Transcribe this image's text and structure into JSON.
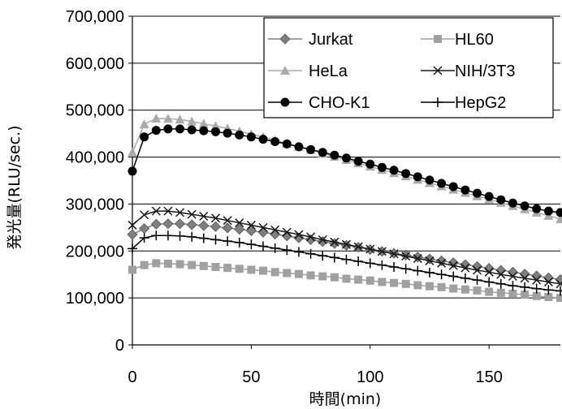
{
  "chart_data": {
    "type": "line",
    "title": "",
    "xlabel": "時間(min)",
    "ylabel": "発光量(RLU/sec.)",
    "xlim": [
      0,
      180
    ],
    "ylim": [
      0,
      700000
    ],
    "x_ticks": [
      0,
      50,
      100,
      150
    ],
    "x_tick_labels": [
      "0",
      "50",
      "100",
      "150"
    ],
    "y_ticks": [
      0,
      100000,
      200000,
      300000,
      400000,
      500000,
      600000,
      700000
    ],
    "y_tick_labels": [
      "0",
      "100,000",
      "200,000",
      "300,000",
      "400,000",
      "500,000",
      "600,000",
      "700,000"
    ],
    "grid": "horizontal",
    "legend_position": "top-right",
    "x": [
      0,
      5,
      10,
      15,
      20,
      25,
      30,
      35,
      40,
      45,
      50,
      55,
      60,
      65,
      70,
      75,
      80,
      85,
      90,
      95,
      100,
      105,
      110,
      115,
      120,
      125,
      130,
      135,
      140,
      145,
      150,
      155,
      160,
      165,
      170,
      175,
      180
    ],
    "series": [
      {
        "name": "Jurkat",
        "color": "#7f7f7f",
        "marker": "diamond",
        "values": [
          235000,
          248000,
          257000,
          258000,
          258000,
          256000,
          254000,
          252000,
          249000,
          246000,
          243000,
          240000,
          236000,
          232000,
          228000,
          224000,
          220000,
          216000,
          212000,
          208000,
          203000,
          199000,
          195000,
          191000,
          187000,
          183000,
          179000,
          175000,
          171000,
          167000,
          163000,
          159000,
          155000,
          151000,
          147000,
          143000,
          139000
        ]
      },
      {
        "name": "HL60",
        "color": "#a0a0a0",
        "marker": "square",
        "values": [
          160000,
          170000,
          174000,
          173000,
          172000,
          170000,
          168000,
          166000,
          164000,
          162000,
          160000,
          158000,
          155000,
          153000,
          151000,
          148000,
          146000,
          144000,
          141000,
          139000,
          137000,
          134000,
          132000,
          130000,
          127000,
          125000,
          123000,
          120000,
          118000,
          116000,
          113000,
          111000,
          109000,
          107000,
          104000,
          102000,
          100000
        ]
      },
      {
        "name": "HeLa",
        "color": "#aaaaaa",
        "marker": "triangle",
        "values": [
          410000,
          470000,
          482000,
          482000,
          480000,
          476000,
          471000,
          466000,
          461000,
          455000,
          449000,
          443000,
          436000,
          429000,
          422000,
          415000,
          408000,
          401000,
          394000,
          387000,
          380000,
          373000,
          366000,
          359000,
          352000,
          345000,
          338000,
          331000,
          324000,
          317000,
          310000,
          303000,
          296000,
          289000,
          282000,
          275000,
          268000
        ]
      },
      {
        "name": "NIH/3T3",
        "color": "#1a1a1a",
        "marker": "x",
        "values": [
          255000,
          277000,
          285000,
          285000,
          282000,
          278000,
          274000,
          270000,
          265000,
          260000,
          255000,
          250000,
          245000,
          240000,
          235000,
          230000,
          224000,
          219000,
          214000,
          209000,
          204000,
          199000,
          194000,
          189000,
          184000,
          179000,
          174000,
          169000,
          164000,
          159000,
          155000,
          150000,
          146000,
          142000,
          138000,
          134000,
          130000
        ]
      },
      {
        "name": "CHO-K1",
        "color": "#000000",
        "marker": "circle",
        "values": [
          370000,
          443000,
          457000,
          460000,
          460000,
          458000,
          456000,
          454000,
          451000,
          447000,
          443000,
          438000,
          433000,
          428000,
          422000,
          416000,
          410000,
          404000,
          398000,
          391000,
          385000,
          378000,
          372000,
          365000,
          358000,
          351000,
          344000,
          337000,
          330000,
          323000,
          316000,
          309000,
          302000,
          296000,
          290000,
          285000,
          282000
        ]
      },
      {
        "name": "HepG2",
        "color": "#000000",
        "marker": "plus",
        "values": [
          205000,
          228000,
          233000,
          233000,
          232000,
          230000,
          227000,
          224000,
          221000,
          218000,
          214000,
          210000,
          206000,
          202000,
          198000,
          194000,
          190000,
          186000,
          182000,
          178000,
          174000,
          170000,
          166000,
          162000,
          158000,
          154000,
          150000,
          146000,
          142000,
          138000,
          134000,
          130000,
          126000,
          123000,
          120000,
          117000,
          115000
        ]
      }
    ]
  }
}
